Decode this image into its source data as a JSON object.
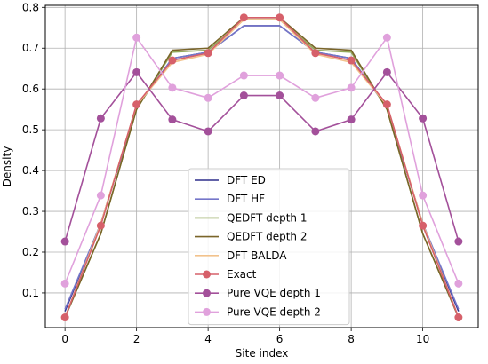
{
  "chart_data": {
    "type": "line",
    "xlabel": "Site index",
    "ylabel": "Density",
    "xlim": [
      -0.55,
      11.55
    ],
    "ylim": [
      0.015,
      0.805
    ],
    "x": [
      0,
      1,
      2,
      3,
      4,
      5,
      6,
      7,
      8,
      9,
      10,
      11
    ],
    "xticks": [
      0,
      2,
      4,
      6,
      8,
      10
    ],
    "yticks": [
      0.1,
      0.2,
      0.3,
      0.4,
      0.5,
      0.6,
      0.7,
      0.8
    ],
    "grid": true,
    "legend_position": "lower center",
    "series": [
      {
        "name": "DFT ED",
        "color": "#2e2f8c",
        "marker": false,
        "values": [
          0.055,
          0.27,
          0.555,
          0.675,
          0.69,
          0.755,
          0.755,
          0.69,
          0.675,
          0.555,
          0.27,
          0.055
        ]
      },
      {
        "name": "DFT HF",
        "color": "#7576c9",
        "marker": false,
        "values": [
          0.06,
          0.27,
          0.555,
          0.675,
          0.69,
          0.755,
          0.755,
          0.69,
          0.675,
          0.555,
          0.27,
          0.06
        ]
      },
      {
        "name": "QEDFT depth 1",
        "color": "#93a85a",
        "marker": false,
        "values": [
          0.04,
          0.245,
          0.55,
          0.69,
          0.695,
          0.77,
          0.77,
          0.695,
          0.69,
          0.55,
          0.245,
          0.04
        ]
      },
      {
        "name": "QEDFT depth 2",
        "color": "#7a6529",
        "marker": false,
        "values": [
          0.04,
          0.245,
          0.55,
          0.695,
          0.7,
          0.775,
          0.775,
          0.7,
          0.695,
          0.55,
          0.245,
          0.04
        ]
      },
      {
        "name": "DFT BALDA",
        "color": "#f2c28c",
        "marker": false,
        "values": [
          0.04,
          0.27,
          0.56,
          0.665,
          0.685,
          0.77,
          0.77,
          0.685,
          0.665,
          0.56,
          0.27,
          0.04
        ]
      },
      {
        "name": "Exact",
        "color": "#d6606a",
        "marker": true,
        "values": [
          0.04,
          0.265,
          0.562,
          0.67,
          0.688,
          0.775,
          0.775,
          0.688,
          0.67,
          0.562,
          0.265,
          0.04
        ]
      },
      {
        "name": "Pure VQE depth 1",
        "color": "#a3509a",
        "marker": true,
        "values": [
          0.226,
          0.528,
          0.641,
          0.525,
          0.496,
          0.584,
          0.584,
          0.496,
          0.525,
          0.641,
          0.528,
          0.226
        ]
      },
      {
        "name": "Pure VQE depth 2",
        "color": "#e0a1dc",
        "marker": true,
        "values": [
          0.123,
          0.339,
          0.726,
          0.603,
          0.578,
          0.633,
          0.633,
          0.578,
          0.603,
          0.726,
          0.339,
          0.123
        ]
      }
    ]
  }
}
